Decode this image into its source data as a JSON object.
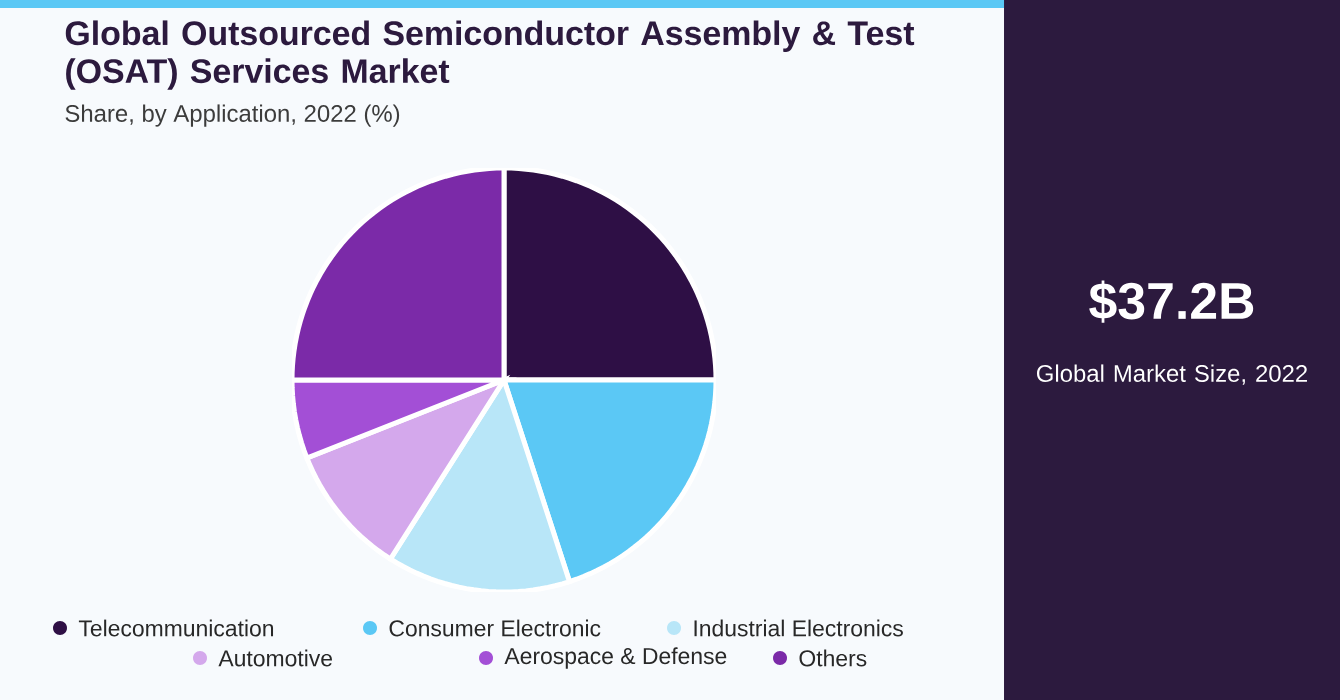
{
  "chart_data": {
    "type": "pie",
    "title": "Global Outsourced Semiconductor Assembly & Test (OSAT) Services Market",
    "subtitle": "Share, by Application, 2022 (%)",
    "categories": [
      "Telecommunication",
      "Consumer Electronic",
      "Industrial Electronics",
      "Automotive",
      "Aerospace & Defense",
      "Others"
    ],
    "values": [
      25,
      20,
      14,
      10,
      6,
      25
    ],
    "colors": [
      "#2e0f45",
      "#5bc8f5",
      "#b8e6f8",
      "#d4a8ec",
      "#a34fd6",
      "#7b2aa8"
    ],
    "annotations": [
      "$37.2B",
      "Global Market Size, 2022"
    ],
    "legend": "bottom"
  }
}
